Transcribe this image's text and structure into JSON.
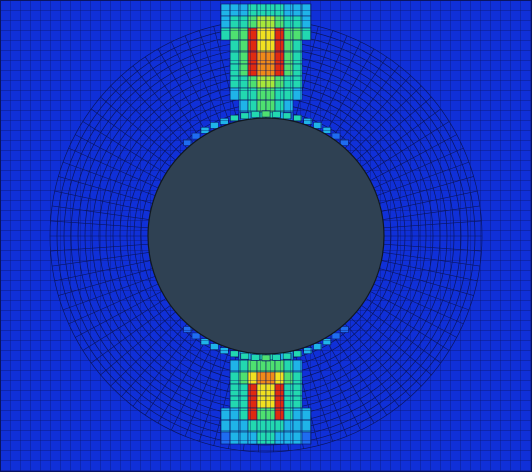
{
  "plot": {
    "background_color": "#1030d8",
    "mesh_line_color": "#0a1560",
    "hole_fill_color": "#2f4153",
    "hole_stroke_color": "#101820",
    "colormap": [
      "#1030d8",
      "#1e6cf0",
      "#1fb4e8",
      "#22d8b0",
      "#4ee070",
      "#a6e83a",
      "#f0e020",
      "#f08a18",
      "#e02a10"
    ]
  },
  "stress_bands": [
    {
      "name": "upper-band",
      "cells": [
        {
          "level": 0.35
        },
        {
          "level": 0.55
        },
        {
          "level": 0.7
        },
        {
          "level": 0.95
        },
        {
          "level": 0.85
        },
        {
          "level": 0.6
        },
        {
          "level": 0.45
        }
      ]
    },
    {
      "name": "lower-band",
      "cells": [
        {
          "level": 0.4
        },
        {
          "level": 0.6
        },
        {
          "level": 0.9
        },
        {
          "level": 0.75
        },
        {
          "level": 0.55
        },
        {
          "level": 0.45
        },
        {
          "level": 0.35
        }
      ]
    }
  ]
}
